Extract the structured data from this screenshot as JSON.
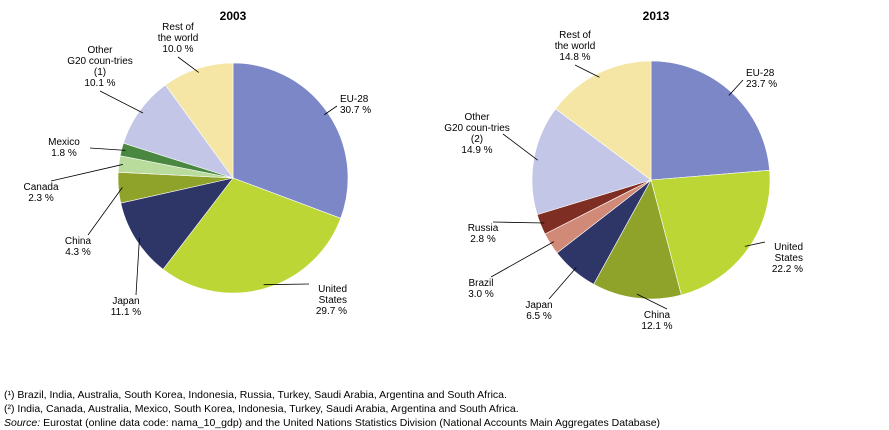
{
  "chart_data": [
    {
      "type": "pie",
      "title": "2003",
      "slices": [
        {
          "label": [
            "EU-28",
            "30.7 %"
          ],
          "value": 30.7,
          "color": "#7b87c6"
        },
        {
          "label": [
            "United",
            "States",
            "29.7 %"
          ],
          "value": 29.7,
          "color": "#bcd635"
        },
        {
          "label": [
            "Japan",
            "11.1 %"
          ],
          "value": 11.1,
          "color": "#2e3567"
        },
        {
          "label": [
            "China",
            "4.3 %"
          ],
          "value": 4.3,
          "color": "#8fa22a"
        },
        {
          "label": [
            "Canada",
            "2.3 %"
          ],
          "value": 2.3,
          "color": "#b9dc9c"
        },
        {
          "label": [
            "Mexico",
            "1.8 %"
          ],
          "value": 1.8,
          "color": "#4a8741"
        },
        {
          "label": [
            "Other",
            "G20 coun-tries",
            "(1)",
            "10.1 %"
          ],
          "value": 10.1,
          "color": "#c3c6e6"
        },
        {
          "label": [
            "Rest of",
            "the world",
            "10.0 %"
          ],
          "value": 10.0,
          "color": "#f6e6a5"
        }
      ]
    },
    {
      "type": "pie",
      "title": "2013",
      "slices": [
        {
          "label": [
            "EU-28",
            "23.7 %"
          ],
          "value": 23.7,
          "color": "#7b87c6"
        },
        {
          "label": [
            "United",
            "States",
            "22.2 %"
          ],
          "value": 22.2,
          "color": "#bcd635"
        },
        {
          "label": [
            "China",
            "12.1 %"
          ],
          "value": 12.1,
          "color": "#8fa22a"
        },
        {
          "label": [
            "Japan",
            "6.5 %"
          ],
          "value": 6.5,
          "color": "#2e3567"
        },
        {
          "label": [
            "Brazil",
            "3.0 %"
          ],
          "value": 3.0,
          "color": "#d18a78"
        },
        {
          "label": [
            "Russia",
            "2.8 %"
          ],
          "value": 2.8,
          "color": "#7e2e22"
        },
        {
          "label": [
            "Other",
            "G20 coun-tries",
            "(2)",
            "14.9 %"
          ],
          "value": 14.9,
          "color": "#c3c6e6"
        },
        {
          "label": [
            "Rest of",
            "the world",
            "14.8 %"
          ],
          "value": 14.8,
          "color": "#f6e6a5"
        }
      ]
    }
  ],
  "footnotes": {
    "note1": "(¹) Brazil, India, Australia, South Korea, Indonesia, Russia, Turkey, Saudi Arabia, Argentina and South Africa.",
    "note2": "(²) India, Canada, Australia, Mexico, South Korea, Indonesia, Turkey, Saudi Arabia, Argentina and South Africa.",
    "source_label": "Source:",
    "source_text": "Eurostat (online data code: nama_10_gdp) and the United Nations Statistics Division (National Accounts Main Aggregates Database)"
  }
}
